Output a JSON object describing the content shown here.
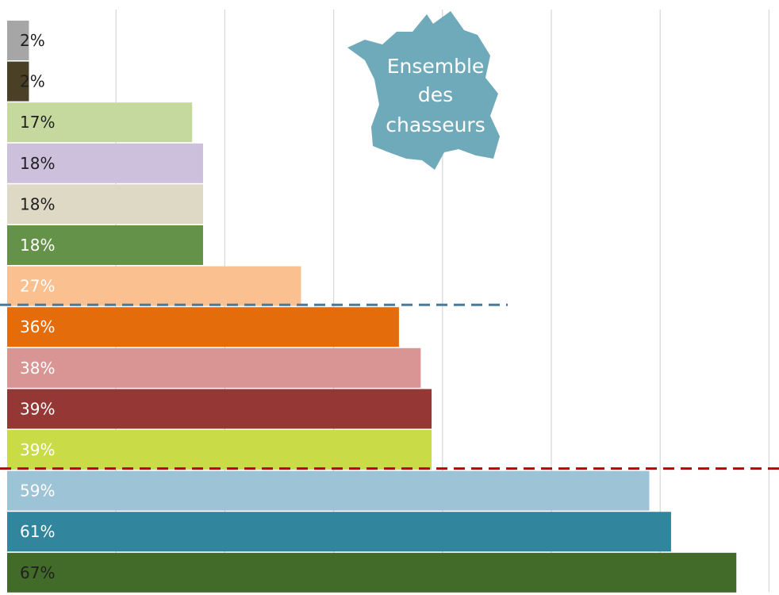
{
  "chart_data": {
    "type": "bar",
    "orientation": "horizontal",
    "grid": true,
    "xlim": [
      0,
      70
    ],
    "values": [
      2,
      2,
      17,
      18,
      18,
      18,
      27,
      36,
      38,
      39,
      39,
      59,
      61,
      67
    ],
    "data_labels": [
      "2%",
      "2%",
      "17%",
      "18%",
      "18%",
      "18%",
      "27%",
      "36%",
      "38%",
      "39%",
      "39%",
      "59%",
      "61%",
      "67%"
    ],
    "colors": [
      "#a6a6a6",
      "#4a4026",
      "#c5d99e",
      "#ccc0dd",
      "#ddd9c4",
      "#649249",
      "#fac090",
      "#e46c0a",
      "#d99594",
      "#953735",
      "#c9dc47",
      "#9dc3d6",
      "#31859c",
      "#426a29"
    ],
    "label_colors": [
      "#1f1f1f",
      "#1f1f1f",
      "#1f1f1f",
      "#1f1f1f",
      "#1f1f1f",
      "#ffffff",
      "#ffffff",
      "#ffffff",
      "#ffffff",
      "#ffffff",
      "#ffffff",
      "#ffffff",
      "#ffffff",
      "#1f1f1f"
    ],
    "reference_lines": [
      {
        "after_index": 6,
        "color": "#4a7a99"
      },
      {
        "after_index": 10,
        "color": "#c00000"
      }
    ]
  },
  "inset": {
    "lines": [
      "Ensemble",
      "des",
      "chasseurs"
    ],
    "color": "#6eaab9"
  }
}
